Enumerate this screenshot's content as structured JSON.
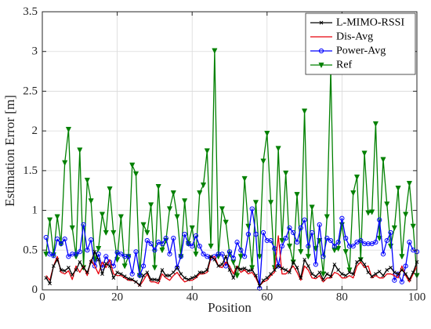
{
  "chart_data": {
    "type": "line",
    "xlabel": "Position",
    "ylabel": "Estimation Error [m]",
    "xlim": [
      0,
      100
    ],
    "ylim": [
      0,
      3.5
    ],
    "xticks": [
      "0",
      "20",
      "40",
      "60",
      "80",
      "100"
    ],
    "yticks": [
      "0",
      "0.5",
      "1",
      "1.5",
      "2",
      "2.5",
      "3",
      "3.5"
    ],
    "grid": true,
    "legend_position": "top-right",
    "x": [
      1,
      2,
      3,
      4,
      5,
      6,
      7,
      8,
      9,
      10,
      11,
      12,
      13,
      14,
      15,
      16,
      17,
      18,
      19,
      20,
      21,
      22,
      23,
      24,
      25,
      26,
      27,
      28,
      29,
      30,
      31,
      32,
      33,
      34,
      35,
      36,
      37,
      38,
      39,
      40,
      41,
      42,
      43,
      44,
      45,
      46,
      47,
      48,
      49,
      50,
      51,
      52,
      53,
      54,
      55,
      56,
      57,
      58,
      59,
      60,
      61,
      62,
      63,
      64,
      65,
      66,
      67,
      68,
      69,
      70,
      71,
      72,
      73,
      74,
      75,
      76,
      77,
      78,
      79,
      80,
      81,
      82,
      83,
      84,
      85,
      86,
      87,
      88,
      89,
      90,
      91,
      92,
      93,
      94,
      95,
      96,
      97,
      98,
      99,
      100
    ],
    "series": [
      {
        "name": "L-MIMO-RSSI",
        "color": "#000000",
        "marker": "x",
        "values": [
          0.15,
          0.08,
          0.3,
          0.38,
          0.25,
          0.24,
          0.28,
          0.19,
          0.25,
          0.35,
          0.28,
          0.22,
          0.35,
          0.48,
          0.38,
          0.2,
          0.33,
          0.3,
          0.15,
          0.22,
          0.2,
          0.17,
          0.14,
          0.13,
          0.1,
          0.06,
          0.18,
          0.22,
          0.13,
          0.13,
          0.12,
          0.25,
          0.18,
          0.18,
          0.22,
          0.28,
          0.2,
          0.15,
          0.13,
          0.15,
          0.17,
          0.22,
          0.22,
          0.25,
          0.42,
          0.38,
          0.3,
          0.32,
          0.42,
          0.25,
          0.15,
          0.28,
          0.26,
          0.27,
          0.24,
          0.25,
          0.18,
          0.05,
          0.12,
          0.15,
          0.2,
          0.25,
          0.3,
          0.27,
          0.25,
          0.22,
          0.35,
          0.28,
          0.15,
          0.38,
          0.3,
          0.2,
          0.17,
          0.22,
          0.13,
          0.2,
          0.17,
          0.32,
          0.25,
          0.2,
          0.18,
          0.22,
          0.2,
          0.35,
          0.38,
          0.32,
          0.22,
          0.17,
          0.2,
          0.23,
          0.18,
          0.25,
          0.28,
          0.22,
          0.2,
          0.25,
          0.2,
          0.13,
          0.22,
          0.35
        ]
      },
      {
        "name": "Dis-Avg",
        "color": "#e8000b",
        "marker": "none",
        "values": [
          0.18,
          0.12,
          0.3,
          0.42,
          0.22,
          0.2,
          0.24,
          0.13,
          0.3,
          0.22,
          0.3,
          0.18,
          0.38,
          0.3,
          0.2,
          0.35,
          0.28,
          0.38,
          0.2,
          0.18,
          0.18,
          0.15,
          0.12,
          0.12,
          0.1,
          0.05,
          0.12,
          0.2,
          0.1,
          0.1,
          0.08,
          0.2,
          0.15,
          0.12,
          0.18,
          0.22,
          0.15,
          0.1,
          0.12,
          0.12,
          0.15,
          0.2,
          0.2,
          0.22,
          0.4,
          0.42,
          0.3,
          0.28,
          0.35,
          0.3,
          0.2,
          0.3,
          0.22,
          0.25,
          0.2,
          0.22,
          0.15,
          0.05,
          0.1,
          0.12,
          0.18,
          0.22,
          0.68,
          0.2,
          0.2,
          0.25,
          0.3,
          0.22,
          0.12,
          0.3,
          0.25,
          0.15,
          0.14,
          0.18,
          0.1,
          0.15,
          0.15,
          0.22,
          0.2,
          0.15,
          0.15,
          0.18,
          0.15,
          0.3,
          0.35,
          0.28,
          0.3,
          0.15,
          0.18,
          0.15,
          0.15,
          0.2,
          0.2,
          0.18,
          0.15,
          0.3,
          0.18,
          0.1,
          0.2,
          0.3
        ]
      },
      {
        "name": "Power-Avg",
        "color": "#0000ff",
        "marker": "o",
        "values": [
          0.66,
          0.45,
          0.43,
          0.64,
          0.58,
          0.64,
          0.42,
          0.45,
          0.45,
          0.48,
          0.82,
          0.5,
          0.63,
          0.3,
          0.45,
          0.28,
          0.42,
          0.35,
          0.3,
          0.47,
          0.45,
          0.42,
          0.42,
          0.2,
          0.48,
          0.18,
          0.3,
          0.62,
          0.58,
          0.5,
          0.6,
          0.58,
          0.65,
          0.45,
          0.65,
          0.28,
          0.42,
          0.7,
          0.58,
          0.55,
          0.68,
          0.55,
          0.45,
          0.42,
          0.4,
          0.42,
          0.45,
          0.45,
          0.3,
          0.48,
          0.4,
          0.6,
          0.5,
          0.42,
          0.7,
          1.02,
          0.7,
          0.02,
          0.72,
          0.62,
          0.62,
          0.52,
          0.3,
          0.55,
          0.65,
          0.78,
          0.72,
          0.6,
          0.78,
          0.88,
          0.55,
          0.72,
          0.32,
          0.82,
          0.42,
          0.65,
          0.62,
          0.55,
          0.6,
          0.9,
          0.65,
          0.55,
          0.55,
          0.6,
          0.62,
          0.58,
          0.58,
          0.58,
          0.6,
          0.88,
          0.45,
          0.62,
          0.72,
          0.12,
          0.2,
          0.1,
          0.3,
          0.6,
          0.5,
          0.48
        ]
      },
      {
        "name": "Ref",
        "color": "#008000",
        "marker": "v",
        "values": [
          0.45,
          0.88,
          0.44,
          0.92,
          0.58,
          1.6,
          2.02,
          0.78,
          0.42,
          1.76,
          0.28,
          1.38,
          1.12,
          0.38,
          0.52,
          0.95,
          0.72,
          1.27,
          0.72,
          0.38,
          0.92,
          0.3,
          0.42,
          1.57,
          1.46,
          0.18,
          0.82,
          0.72,
          1.07,
          0.28,
          1.3,
          0.5,
          0.62,
          1.02,
          1.22,
          0.92,
          0.42,
          1.12,
          0.58,
          0.78,
          0.45,
          1.22,
          1.32,
          1.75,
          0.55,
          3.01,
          0.42,
          1.02,
          0.85,
          0.45,
          0.35,
          0.18,
          0.42,
          1.4,
          0.8,
          0.28,
          1.1,
          0.42,
          1.62,
          1.97,
          1.1,
          0.28,
          1.78,
          0.62,
          1.47,
          0.55,
          0.35,
          1.2,
          0.48,
          2.25,
          0.42,
          1.04,
          0.52,
          0.62,
          0.2,
          0.92,
          2.77,
          0.5,
          0.52,
          0.82,
          0.48,
          0.25,
          1.22,
          1.42,
          0.38,
          1.72,
          0.97,
          0.98,
          2.09,
          0.65,
          1.64,
          1.08,
          0.55,
          0.78,
          1.28,
          0.42,
          0.95,
          1.34,
          0.8,
          0.18
        ]
      }
    ]
  }
}
